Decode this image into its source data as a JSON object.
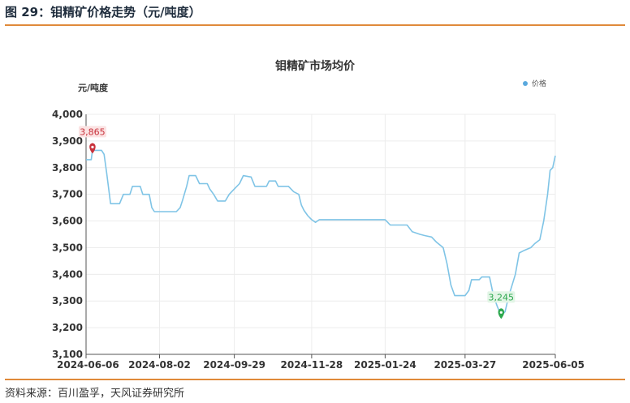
{
  "figure": {
    "title": "图 29：钼精矿价格走势（元/吨度）",
    "source": "资料来源：百川盈孚，天风证券研究所"
  },
  "colors": {
    "line": "#7fc4e6",
    "rule": "#e08a3a",
    "max": "#c8323c",
    "min": "#2da84e"
  },
  "chart_data": {
    "type": "line",
    "title": "钼精矿市场均价",
    "ylabel": "元/吨度",
    "xlabel": "",
    "ylim": [
      3100,
      4000
    ],
    "yticks": [
      "3,100",
      "3,200",
      "3,300",
      "3,400",
      "3,500",
      "3,600",
      "3,700",
      "3,800",
      "3,900",
      "4,000"
    ],
    "xticks": [
      "2024-06-06",
      "2024-08-02",
      "2024-09-29",
      "2024-11-28",
      "2025-01-24",
      "2025-03-27",
      "2025-06-05"
    ],
    "legend": {
      "position": "top-right",
      "entries": [
        "价格"
      ]
    },
    "grid": true,
    "series": [
      {
        "name": "价格",
        "points": [
          [
            "2024-06-06",
            3830
          ],
          [
            "2024-06-10",
            3830
          ],
          [
            "2024-06-11",
            3865
          ],
          [
            "2024-06-18",
            3865
          ],
          [
            "2024-06-20",
            3850
          ],
          [
            "2024-06-22",
            3780
          ],
          [
            "2024-06-25",
            3665
          ],
          [
            "2024-07-02",
            3665
          ],
          [
            "2024-07-05",
            3700
          ],
          [
            "2024-07-10",
            3700
          ],
          [
            "2024-07-12",
            3730
          ],
          [
            "2024-07-18",
            3730
          ],
          [
            "2024-07-20",
            3700
          ],
          [
            "2024-07-25",
            3700
          ],
          [
            "2024-07-27",
            3650
          ],
          [
            "2024-07-29",
            3635
          ],
          [
            "2024-08-02",
            3635
          ],
          [
            "2024-08-15",
            3635
          ],
          [
            "2024-08-18",
            3650
          ],
          [
            "2024-08-20",
            3680
          ],
          [
            "2024-08-23",
            3730
          ],
          [
            "2024-08-25",
            3770
          ],
          [
            "2024-08-30",
            3770
          ],
          [
            "2024-09-02",
            3740
          ],
          [
            "2024-09-08",
            3740
          ],
          [
            "2024-09-10",
            3720
          ],
          [
            "2024-09-13",
            3700
          ],
          [
            "2024-09-16",
            3675
          ],
          [
            "2024-09-22",
            3675
          ],
          [
            "2024-09-25",
            3700
          ],
          [
            "2024-09-29",
            3720
          ],
          [
            "2024-10-03",
            3740
          ],
          [
            "2024-10-06",
            3770
          ],
          [
            "2024-10-12",
            3765
          ],
          [
            "2024-10-15",
            3730
          ],
          [
            "2024-10-24",
            3730
          ],
          [
            "2024-10-26",
            3750
          ],
          [
            "2024-10-31",
            3750
          ],
          [
            "2024-11-02",
            3730
          ],
          [
            "2024-11-10",
            3730
          ],
          [
            "2024-11-14",
            3710
          ],
          [
            "2024-11-18",
            3700
          ],
          [
            "2024-11-20",
            3660
          ],
          [
            "2024-11-22",
            3640
          ],
          [
            "2024-11-25",
            3620
          ],
          [
            "2024-11-28",
            3605
          ],
          [
            "2024-12-01",
            3595
          ],
          [
            "2024-12-04",
            3605
          ],
          [
            "2024-12-20",
            3605
          ],
          [
            "2025-01-24",
            3605
          ],
          [
            "2025-01-28",
            3585
          ],
          [
            "2025-02-10",
            3585
          ],
          [
            "2025-02-14",
            3560
          ],
          [
            "2025-02-20",
            3550
          ],
          [
            "2025-02-24",
            3545
          ],
          [
            "2025-03-01",
            3540
          ],
          [
            "2025-03-05",
            3520
          ],
          [
            "2025-03-10",
            3500
          ],
          [
            "2025-03-13",
            3440
          ],
          [
            "2025-03-16",
            3360
          ],
          [
            "2025-03-19",
            3320
          ],
          [
            "2025-03-27",
            3320
          ],
          [
            "2025-03-30",
            3340
          ],
          [
            "2025-04-01",
            3380
          ],
          [
            "2025-04-07",
            3380
          ],
          [
            "2025-04-09",
            3390
          ],
          [
            "2025-04-15",
            3390
          ],
          [
            "2025-04-18",
            3320
          ],
          [
            "2025-04-21",
            3280
          ],
          [
            "2025-04-24",
            3245
          ],
          [
            "2025-04-27",
            3260
          ],
          [
            "2025-04-30",
            3320
          ],
          [
            "2025-05-05",
            3400
          ],
          [
            "2025-05-08",
            3480
          ],
          [
            "2025-05-12",
            3490
          ],
          [
            "2025-05-17",
            3500
          ],
          [
            "2025-05-20",
            3515
          ],
          [
            "2025-05-24",
            3530
          ],
          [
            "2025-05-27",
            3600
          ],
          [
            "2025-05-30",
            3700
          ],
          [
            "2025-06-01",
            3790
          ],
          [
            "2025-06-03",
            3800
          ],
          [
            "2025-06-05",
            3845
          ]
        ]
      }
    ],
    "annotations": [
      {
        "type": "max",
        "date": "2024-06-11",
        "value": 3865,
        "label": "3,865"
      },
      {
        "type": "min",
        "date": "2025-04-24",
        "value": 3245,
        "label": "3,245"
      }
    ]
  }
}
